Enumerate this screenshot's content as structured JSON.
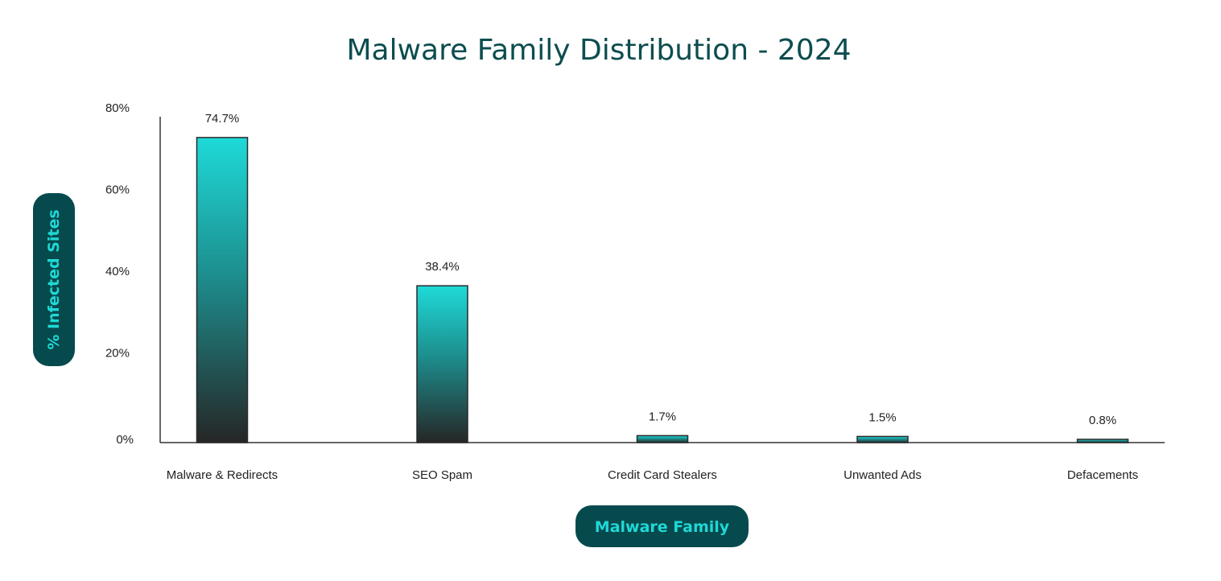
{
  "chart_data": {
    "type": "bar",
    "title": "Malware Family Distribution - 2024",
    "xlabel": "Malware Family",
    "ylabel": "% Infected Sites",
    "categories": [
      "Malware & Redirects",
      "SEO Spam",
      "Credit Card Stealers",
      "Unwanted Ads",
      "Defacements"
    ],
    "values": [
      74.7,
      38.4,
      1.7,
      1.5,
      0.8
    ],
    "value_labels": [
      "74.7%",
      "38.4%",
      "1.7%",
      "1.5%",
      "0.8%"
    ],
    "ylim": [
      0,
      80
    ],
    "yticks": [
      0,
      20,
      40,
      60,
      80
    ],
    "ytick_labels": [
      "0%",
      "20%",
      "40%",
      "60%",
      "80%"
    ],
    "grid": false,
    "legend": "none",
    "colors": {
      "bar_top": "#1edad8",
      "bar_mid": "#1d8e8e",
      "bar_bottom": "#262626",
      "bar_outline": "#2a2a2a",
      "title": "#0d4d4f",
      "pill_bg": "#064a4d",
      "pill_text": "#1fd8d6",
      "axis": "#333333"
    }
  }
}
